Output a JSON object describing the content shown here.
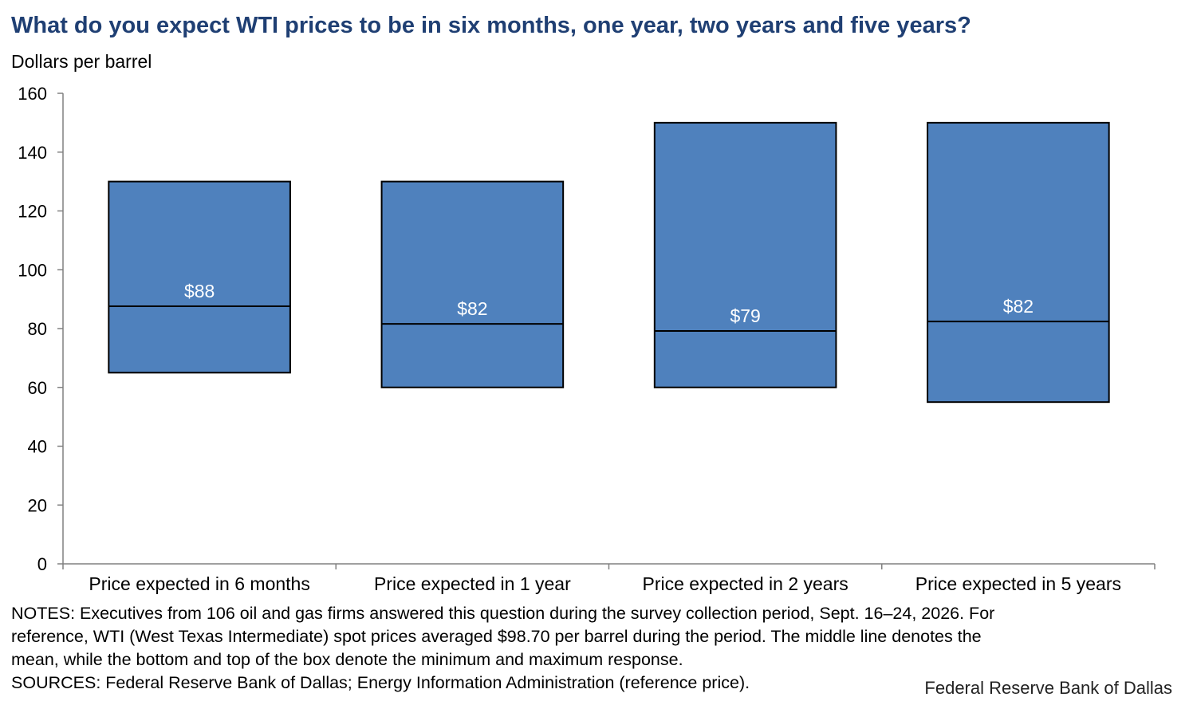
{
  "title": "What do you expect WTI prices to be in six months, one year, two years and five years?",
  "unit_label": "Dollars per barrel",
  "chart_data": {
    "type": "box",
    "ylabel": "Dollars per barrel",
    "ylim": [
      0,
      160
    ],
    "yticks": [
      "0",
      "20",
      "40",
      "60",
      "80",
      "100",
      "120",
      "140",
      "160"
    ],
    "grid": false,
    "box_color": "#4f81bd",
    "categories": [
      "Price expected in 6 months",
      "Price expected in 1 year",
      "Price expected in 2 years",
      "Price expected in 5 years"
    ],
    "min": [
      65,
      60,
      60,
      55
    ],
    "max": [
      130,
      130,
      150,
      150
    ],
    "mean": [
      87.6,
      81.6,
      79.2,
      82.4
    ],
    "mean_labels": [
      "$88",
      "$82",
      "$79",
      "$82"
    ]
  },
  "notes": {
    "line1": "NOTES: Executives from 106 oil and gas firms answered this question during the survey collection period, Sept. 16–24, 2026. For",
    "line2": "reference, WTI (West Texas Intermediate) spot prices averaged $98.70 per barrel during the period. The middle line denotes the",
    "line3": "mean, while the bottom and top of the box denote the minimum and maximum response.",
    "sources": "SOURCES: Federal Reserve Bank of Dallas; Energy Information Administration (reference price)."
  },
  "credit": "Federal Reserve Bank of Dallas"
}
